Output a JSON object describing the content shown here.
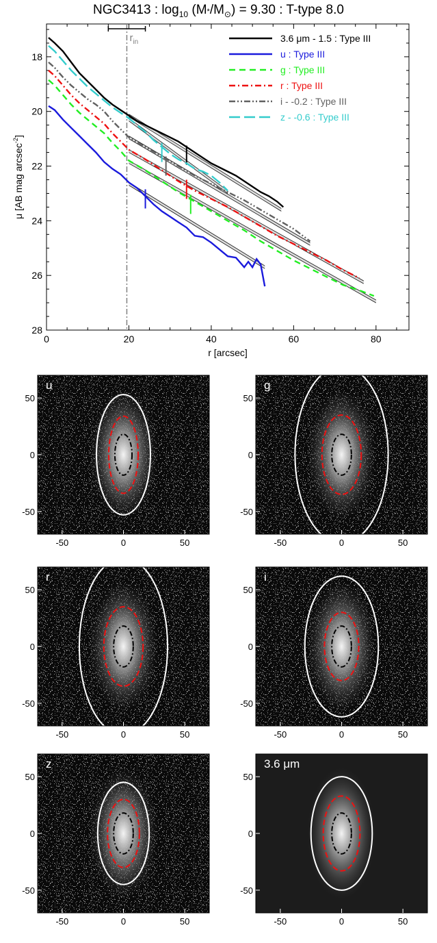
{
  "title_parts": [
    "NGC3413 : log",
    "10",
    " (M",
    "*",
    "/M",
    "⊙",
    ") = 9.30 : T-type 8.0"
  ],
  "colors": {
    "3.6um": "#000000",
    "u": "#1a1adc",
    "g": "#22ee22",
    "r": "#ee1111",
    "i": "#606060",
    "z": "#33cccc",
    "inner_ellipse": "#000000",
    "middle_ellipse": "#ee1111",
    "outer_ellipse": "#ffffff",
    "r_in_line": "#808080"
  },
  "chart_data": [
    {
      "type": "line",
      "xlabel": "r [arcsec]",
      "ylabel_main": "μ [AB mag arcsec",
      "ylabel_sup": "-2",
      "ylabel_end": "]",
      "xlim": [
        0,
        88
      ],
      "ylim": [
        28,
        16.8
      ],
      "y_inverted": true,
      "x_ticks": [
        0,
        20,
        40,
        60,
        80
      ],
      "y_ticks": [
        18,
        20,
        22,
        24,
        26,
        28
      ],
      "r_in": 19.5,
      "r_in_label": "r",
      "r_in_sub": "in",
      "r_in_errorbar": [
        15,
        24
      ],
      "legend_position": "top-right",
      "series": [
        {
          "name": "3.6 μm - 1.5 : Type III",
          "key": "3.6um",
          "dash": "solid",
          "x": [
            0.5,
            2,
            4,
            6,
            8,
            10,
            12,
            14,
            16,
            18,
            20,
            22,
            24,
            26,
            28,
            30,
            32,
            34,
            36,
            38,
            40,
            42,
            44,
            46,
            48,
            50,
            52,
            54,
            56,
            57.5
          ],
          "y": [
            17.3,
            17.5,
            17.8,
            18.2,
            18.6,
            18.9,
            19.2,
            19.5,
            19.75,
            19.95,
            20.15,
            20.35,
            20.5,
            20.65,
            20.8,
            20.95,
            21.1,
            21.3,
            21.5,
            21.7,
            21.9,
            22.05,
            22.2,
            22.35,
            22.55,
            22.75,
            22.95,
            23.1,
            23.3,
            23.5
          ],
          "break_x": 34,
          "break_y": 21.6
        },
        {
          "name": "u : Type III",
          "key": "u",
          "dash": "solid",
          "x": [
            0.5,
            2,
            4,
            6,
            8,
            10,
            12,
            14,
            16,
            18,
            20,
            22,
            24,
            26,
            28,
            30,
            32,
            34,
            36,
            38,
            40,
            42,
            44,
            46,
            48,
            49,
            50,
            51,
            52,
            53
          ],
          "y": [
            19.8,
            19.95,
            20.3,
            20.6,
            20.9,
            21.2,
            21.5,
            21.85,
            22.1,
            22.3,
            22.6,
            22.8,
            23.1,
            23.4,
            23.65,
            23.85,
            24.05,
            24.25,
            24.55,
            24.6,
            24.8,
            25.05,
            25.3,
            25.35,
            25.7,
            25.5,
            25.7,
            25.4,
            25.6,
            26.4
          ],
          "break_x": 24,
          "break_y": 23.2
        },
        {
          "name": "g : Type III",
          "key": "g",
          "dash": "dash",
          "x": [
            0.5,
            2,
            4,
            6,
            8,
            10,
            12,
            14,
            16,
            18,
            20,
            24,
            28,
            32,
            36,
            40,
            44,
            48,
            52,
            56,
            60,
            64,
            68,
            72,
            76,
            79.5
          ],
          "y": [
            18.85,
            19.05,
            19.4,
            19.75,
            20.05,
            20.3,
            20.55,
            20.8,
            21.15,
            21.45,
            21.8,
            22.15,
            22.55,
            22.95,
            23.3,
            23.65,
            24.0,
            24.35,
            24.75,
            25.1,
            25.45,
            25.75,
            26.05,
            26.35,
            26.55,
            26.75
          ],
          "break_x": 35,
          "break_y": 23.4
        },
        {
          "name": "r : Type III",
          "key": "r",
          "dash": "dashdot",
          "x": [
            0.5,
            2,
            4,
            6,
            8,
            10,
            12,
            14,
            16,
            18,
            20,
            24,
            28,
            32,
            36,
            40,
            44,
            48,
            52,
            56,
            60,
            64,
            68,
            72,
            76
          ],
          "y": [
            18.5,
            18.7,
            19.05,
            19.4,
            19.7,
            19.95,
            20.2,
            20.45,
            20.8,
            21.1,
            21.4,
            21.75,
            22.15,
            22.55,
            22.9,
            23.2,
            23.5,
            23.85,
            24.2,
            24.55,
            24.85,
            25.15,
            25.45,
            25.8,
            26.1
          ],
          "break_x": 34,
          "break_y": 22.85
        },
        {
          "name": "i - -0.2 : Type III",
          "key": "i",
          "dash": "dashdotdot",
          "x": [
            0.5,
            2,
            4,
            6,
            8,
            10,
            12,
            14,
            16,
            18,
            20,
            24,
            28,
            32,
            36,
            40,
            44,
            48,
            52,
            56,
            60,
            64
          ],
          "y": [
            18.2,
            18.4,
            18.75,
            19.05,
            19.3,
            19.55,
            19.75,
            20.0,
            20.35,
            20.65,
            20.95,
            21.3,
            21.65,
            22.0,
            22.35,
            22.65,
            22.95,
            23.25,
            23.6,
            23.95,
            24.3,
            24.75
          ],
          "break_x": 29,
          "break_y": 22.0
        },
        {
          "name": "z - -0.6 : Type III",
          "key": "z",
          "dash": "longdash",
          "x": [
            0.5,
            2,
            4,
            6,
            8,
            10,
            12,
            14,
            16,
            18,
            20,
            22,
            24,
            26,
            28,
            30,
            32,
            34,
            36,
            38,
            40,
            42,
            44
          ],
          "y": [
            17.6,
            17.8,
            18.15,
            18.5,
            18.8,
            19.1,
            19.35,
            19.6,
            19.85,
            20.05,
            20.25,
            20.5,
            20.75,
            21.05,
            21.3,
            21.55,
            21.75,
            21.9,
            22.1,
            22.2,
            22.35,
            22.6,
            22.9
          ],
          "break_x": 28,
          "break_y": 21.5
        }
      ],
      "fit_lines": [
        {
          "key": "3.6um",
          "x": [
            20,
            57
          ],
          "y": [
            20.15,
            23.6
          ]
        },
        {
          "key": "u",
          "x": [
            20,
            53
          ],
          "y": [
            22.65,
            25.7
          ]
        },
        {
          "key": "g",
          "x": [
            20,
            80
          ],
          "y": [
            21.85,
            26.95
          ]
        },
        {
          "key": "r",
          "x": [
            20,
            77
          ],
          "y": [
            21.45,
            26.25
          ]
        },
        {
          "key": "i",
          "x": [
            20,
            64
          ],
          "y": [
            20.95,
            24.85
          ]
        },
        {
          "key": "z",
          "x": [
            20,
            44
          ],
          "y": [
            20.3,
            22.95
          ]
        }
      ]
    },
    {
      "type": "image-grid",
      "axis_ticks": [
        -50,
        0,
        50
      ],
      "axis_range": [
        -70,
        70
      ],
      "panels": [
        {
          "label": "u",
          "bg": "#0a0a0a",
          "outer": [
            22,
            53
          ],
          "middle": [
            12,
            34
          ],
          "inner": [
            7,
            18
          ]
        },
        {
          "label": "g",
          "bg": "#0a0a0a",
          "outer": [
            38,
            78
          ],
          "middle": [
            16,
            35
          ],
          "inner": [
            8,
            18
          ]
        },
        {
          "label": "r",
          "bg": "#0a0a0a",
          "outer": [
            36,
            78
          ],
          "middle": [
            16,
            35
          ],
          "inner": [
            8,
            18
          ]
        },
        {
          "label": "i",
          "bg": "#0a0a0a",
          "outer": [
            30,
            62
          ],
          "middle": [
            14,
            30
          ],
          "inner": [
            8,
            18
          ]
        },
        {
          "label": "z",
          "bg": "#0a0a0a",
          "outer": [
            21,
            45
          ],
          "middle": [
            13,
            30
          ],
          "inner": [
            8,
            18
          ]
        },
        {
          "label": "3.6 μm",
          "bg": "#1c1c1c",
          "outer": [
            25,
            50
          ],
          "middle": [
            15,
            33
          ],
          "inner": [
            8,
            18
          ]
        }
      ]
    }
  ]
}
